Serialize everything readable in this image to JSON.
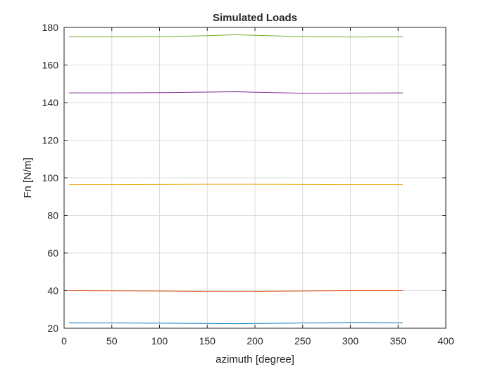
{
  "chart_data": {
    "type": "line",
    "title": "Simulated Loads",
    "xlabel": "azimuth [degree]",
    "ylabel": "Fn [N/m]",
    "xlim": [
      0,
      400
    ],
    "ylim": [
      20,
      180
    ],
    "xticks": [
      0,
      50,
      100,
      150,
      200,
      250,
      300,
      350,
      400
    ],
    "yticks": [
      20,
      40,
      60,
      80,
      100,
      120,
      140,
      160,
      180
    ],
    "grid": true,
    "legend": "none",
    "x": [
      5,
      50,
      100,
      150,
      180,
      200,
      250,
      300,
      355
    ],
    "series": [
      {
        "color": "#0072BD",
        "values": [
          22.9,
          22.8,
          22.7,
          22.5,
          22.4,
          22.5,
          22.8,
          23.0,
          22.9
        ]
      },
      {
        "color": "#D95319",
        "values": [
          40.0,
          39.9,
          39.8,
          39.6,
          39.5,
          39.6,
          39.8,
          40.0,
          40.0
        ]
      },
      {
        "color": "#EDB120",
        "values": [
          96.4,
          96.4,
          96.5,
          96.6,
          96.6,
          96.6,
          96.5,
          96.4,
          96.4
        ]
      },
      {
        "color": "#7E2F8E",
        "values": [
          145.2,
          145.2,
          145.3,
          145.6,
          145.8,
          145.5,
          145.0,
          145.1,
          145.2
        ]
      },
      {
        "color": "#77AC30",
        "values": [
          175.0,
          175.0,
          175.1,
          175.6,
          176.1,
          175.8,
          175.1,
          174.9,
          175.0
        ]
      }
    ]
  }
}
